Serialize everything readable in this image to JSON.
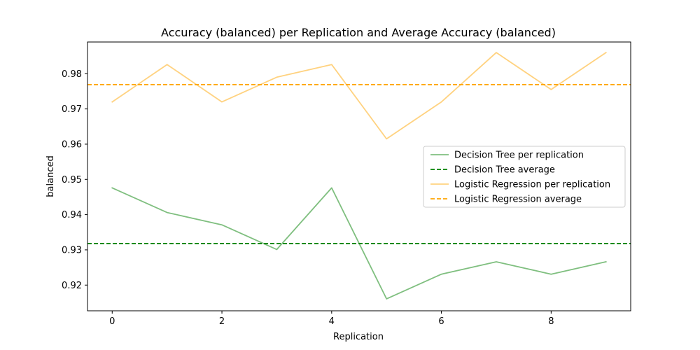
{
  "chart_data": {
    "type": "line",
    "title": "Accuracy (balanced) per Replication and Average Accuracy (balanced)",
    "xlabel": "Replication",
    "ylabel": "balanced",
    "xlim": [
      -0.45,
      9.45
    ],
    "ylim": [
      0.9127,
      0.989
    ],
    "x_ticks": [
      0,
      2,
      4,
      6,
      8
    ],
    "y_ticks": [
      0.92,
      0.93,
      0.94,
      0.95,
      0.96,
      0.97,
      0.98
    ],
    "y_tick_labels": [
      "0.92",
      "0.93",
      "0.94",
      "0.95",
      "0.96",
      "0.97",
      "0.98"
    ],
    "grid": false,
    "legend_position": "center-right",
    "x": [
      0,
      1,
      2,
      3,
      4,
      5,
      6,
      7,
      8,
      9
    ],
    "series": [
      {
        "name": "Decision Tree per replication",
        "kind": "line",
        "color": "#008000",
        "opacity": 0.5,
        "values": [
          0.9476,
          0.9406,
          0.9371,
          0.9301,
          0.9476,
          0.9161,
          0.9231,
          0.9266,
          0.9231,
          0.9266
        ]
      },
      {
        "name": "Decision Tree average",
        "kind": "hline",
        "color": "#008000",
        "opacity": 1,
        "value": 0.9318
      },
      {
        "name": "Logistic Regression per replication",
        "kind": "line",
        "color": "#FFA500",
        "opacity": 0.5,
        "values": [
          0.972,
          0.9826,
          0.972,
          0.979,
          0.9826,
          0.9615,
          0.972,
          0.986,
          0.9755,
          0.986
        ]
      },
      {
        "name": "Logistic Regression average",
        "kind": "hline",
        "color": "#FFA500",
        "opacity": 1,
        "value": 0.9769
      }
    ]
  }
}
